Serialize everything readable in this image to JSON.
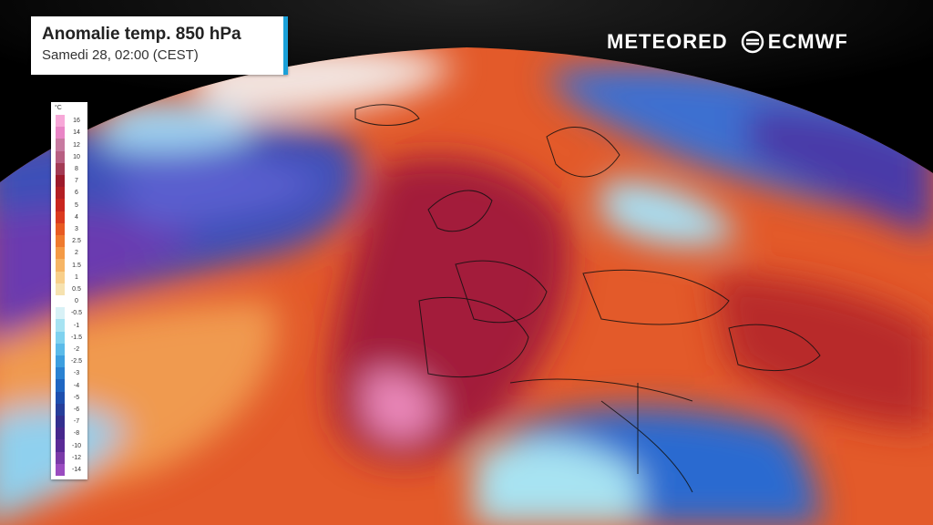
{
  "title": {
    "main": "Anomalie temp. 850 hPa",
    "sub": "Samedi 28, 02:00 (CEST)"
  },
  "brands": {
    "meteored": "METEORED",
    "ecmwf": "ECMWF"
  },
  "legend": {
    "unit": "°C",
    "labels": [
      "16",
      "14",
      "12",
      "10",
      "8",
      "7",
      "6",
      "5",
      "4",
      "3",
      "2.5",
      "2",
      "1.5",
      "1",
      "0.5",
      "0",
      "-0.5",
      "-1",
      "-1.5",
      "-2",
      "-2.5",
      "-3",
      "-4",
      "-5",
      "-6",
      "-7",
      "-8",
      "-10",
      "-12",
      "-14"
    ],
    "colors": [
      "#f7a8d8",
      "#e985c6",
      "#c77aa0",
      "#b85f82",
      "#a33b55",
      "#9d1a2b",
      "#b31f24",
      "#c9261f",
      "#db3a1f",
      "#e85a22",
      "#ef7a2e",
      "#f49a45",
      "#f6b565",
      "#f8cf8a",
      "#f6e2b0",
      "#ffffff",
      "#d8f1f6",
      "#a7e3f2",
      "#7fd2ef",
      "#5bbbe9",
      "#3d9fdf",
      "#2a82d2",
      "#1f66c2",
      "#1e4fae",
      "#263e9a",
      "#332f8e",
      "#46278c",
      "#5a2a96",
      "#7a3aa8",
      "#9a4cc0"
    ]
  },
  "colors": {
    "title_accent": "#1aa0d8"
  }
}
